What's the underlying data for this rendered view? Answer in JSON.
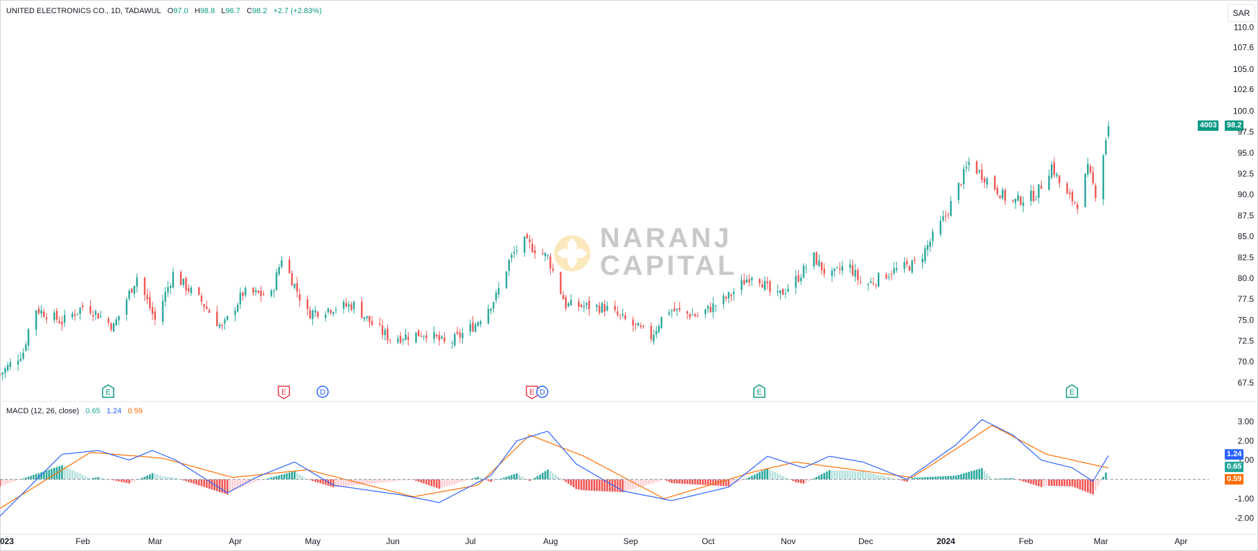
{
  "symbol": {
    "name": "UNITED ELECTRONICS CO., 1D, TADAWUL",
    "o_label": "O",
    "o_value": "97.0",
    "h_label": "H",
    "h_value": "98.8",
    "l_label": "L",
    "l_value": "96.7",
    "c_label": "C",
    "c_value": "98.2",
    "change": "+2.7 (+2.83%)"
  },
  "currency_button": "SAR",
  "price_tag": {
    "volume_text": "4003",
    "price_text": "98.2"
  },
  "macd_legend": {
    "name": "MACD (12, 26, close)",
    "hist": "0.65",
    "macd": "1.24",
    "signal": "0.59"
  },
  "macd_tags": {
    "macd": "1.24",
    "hist": "0.65",
    "signal": "0.59"
  },
  "watermark": {
    "line1": "NARANJ",
    "line2": "CAPITAL"
  },
  "colors": {
    "up": "#26a69a",
    "down": "#ef5350",
    "macd_line": "#2962ff",
    "signal_line": "#ff6d00",
    "hist_up_strong": "#26a69a",
    "hist_up_weak": "#b2dfdb",
    "hist_down_strong": "#ef5350",
    "hist_down_weak": "#ffcdd2"
  },
  "price_axis_labels": [
    "110.0",
    "107.6",
    "105.0",
    "102.6",
    "100.0",
    "97.5",
    "95.0",
    "92.5",
    "90.0",
    "87.5",
    "85.0",
    "82.5",
    "80.0",
    "77.5",
    "75.0",
    "72.5",
    "70.0",
    "67.5"
  ],
  "macd_axis_labels": [
    "3.00",
    "2.00",
    "1.00",
    "-1.00",
    "-2.00"
  ],
  "time_axis_labels": [
    "2023",
    "Feb",
    "Mar",
    "Apr",
    "May",
    "Jun",
    "Jul",
    "Aug",
    "Sep",
    "Oct",
    "Nov",
    "Dec",
    "2024",
    "Feb",
    "Mar",
    "Apr"
  ],
  "events": [
    {
      "type": "E",
      "kind": "earnings-up"
    },
    {
      "type": "E",
      "kind": "earnings-down"
    },
    {
      "type": "D",
      "kind": "dividend"
    },
    {
      "type": "E",
      "kind": "earnings-down"
    },
    {
      "type": "D",
      "kind": "dividend"
    },
    {
      "type": "E",
      "kind": "earnings-up"
    },
    {
      "type": "E",
      "kind": "earnings-up"
    }
  ],
  "chart_data": {
    "type": "candlestick",
    "title": "UNITED ELECTRONICS CO., 1D, TADAWUL",
    "ylim": [
      66.5,
      110.8
    ],
    "price_keypoints": [
      {
        "date": "2023-01-01",
        "close": 68.5
      },
      {
        "date": "2023-01-10",
        "close": 71.2
      },
      {
        "date": "2023-01-14",
        "close": 76.5
      },
      {
        "date": "2023-01-25",
        "close": 74.8
      },
      {
        "date": "2023-02-03",
        "close": 76.8
      },
      {
        "date": "2023-02-14",
        "close": 74.2
      },
      {
        "date": "2023-02-23",
        "close": 80.2
      },
      {
        "date": "2023-03-02",
        "close": 75.0
      },
      {
        "date": "2023-03-09",
        "close": 80.5
      },
      {
        "date": "2023-03-20",
        "close": 77.2
      },
      {
        "date": "2023-03-28",
        "close": 74.0
      },
      {
        "date": "2023-04-05",
        "close": 78.2
      },
      {
        "date": "2023-04-16",
        "close": 78.0
      },
      {
        "date": "2023-04-20",
        "close": 82.5
      },
      {
        "date": "2023-04-30",
        "close": 75.8
      },
      {
        "date": "2023-05-10",
        "close": 76.5
      },
      {
        "date": "2023-05-18",
        "close": 76.8
      },
      {
        "date": "2023-05-25",
        "close": 74.5
      },
      {
        "date": "2023-06-01",
        "close": 72.8
      },
      {
        "date": "2023-06-15",
        "close": 73.5
      },
      {
        "date": "2023-06-23",
        "close": 72.0
      },
      {
        "date": "2023-07-04",
        "close": 74.5
      },
      {
        "date": "2023-07-12",
        "close": 77.8
      },
      {
        "date": "2023-07-17",
        "close": 82.0
      },
      {
        "date": "2023-07-22",
        "close": 84.5
      },
      {
        "date": "2023-08-01",
        "close": 82.5
      },
      {
        "date": "2023-08-08",
        "close": 76.8
      },
      {
        "date": "2023-08-23",
        "close": 76.5
      },
      {
        "date": "2023-09-10",
        "close": 73.0
      },
      {
        "date": "2023-09-16",
        "close": 76.3
      },
      {
        "date": "2023-09-28",
        "close": 75.5
      },
      {
        "date": "2023-10-10",
        "close": 77.8
      },
      {
        "date": "2023-10-20",
        "close": 80.8
      },
      {
        "date": "2023-10-28",
        "close": 77.5
      },
      {
        "date": "2023-11-05",
        "close": 79.8
      },
      {
        "date": "2023-11-12",
        "close": 82.5
      },
      {
        "date": "2023-11-18",
        "close": 80.0
      },
      {
        "date": "2023-11-25",
        "close": 81.8
      },
      {
        "date": "2023-12-01",
        "close": 79.0
      },
      {
        "date": "2023-12-12",
        "close": 80.8
      },
      {
        "date": "2023-12-22",
        "close": 81.8
      },
      {
        "date": "2024-01-02",
        "close": 87.5
      },
      {
        "date": "2024-01-11",
        "close": 93.8
      },
      {
        "date": "2024-01-18",
        "close": 91.8
      },
      {
        "date": "2024-01-27",
        "close": 89.0
      },
      {
        "date": "2024-02-06",
        "close": 90.0
      },
      {
        "date": "2024-02-12",
        "close": 93.5
      },
      {
        "date": "2024-02-17",
        "close": 90.0
      },
      {
        "date": "2024-02-22",
        "close": 89.0
      },
      {
        "date": "2024-02-26",
        "close": 93.0
      },
      {
        "date": "2024-02-29",
        "close": 90.2
      },
      {
        "date": "2024-03-05",
        "close": 98.2
      }
    ],
    "macd": {
      "ylim": [
        -2.6,
        3.5
      ],
      "macd_keypoints": [
        {
          "date": "2023-01-01",
          "value": -1.9
        },
        {
          "date": "2023-01-25",
          "value": 1.3
        },
        {
          "date": "2023-02-08",
          "value": 1.5
        },
        {
          "date": "2023-02-20",
          "value": 1.0
        },
        {
          "date": "2023-03-01",
          "value": 1.5
        },
        {
          "date": "2023-03-10",
          "value": 1.0
        },
        {
          "date": "2023-03-30",
          "value": -0.7
        },
        {
          "date": "2023-04-10",
          "value": 0.1
        },
        {
          "date": "2023-04-25",
          "value": 0.9
        },
        {
          "date": "2023-05-10",
          "value": -0.3
        },
        {
          "date": "2023-06-05",
          "value": -0.8
        },
        {
          "date": "2023-06-20",
          "value": -1.2
        },
        {
          "date": "2023-07-10",
          "value": 0.2
        },
        {
          "date": "2023-07-20",
          "value": 2.0
        },
        {
          "date": "2023-08-01",
          "value": 2.5
        },
        {
          "date": "2023-08-12",
          "value": 0.8
        },
        {
          "date": "2023-08-30",
          "value": -0.6
        },
        {
          "date": "2023-09-18",
          "value": -1.1
        },
        {
          "date": "2023-10-10",
          "value": -0.4
        },
        {
          "date": "2023-10-25",
          "value": 1.2
        },
        {
          "date": "2023-11-08",
          "value": 0.6
        },
        {
          "date": "2023-11-18",
          "value": 1.2
        },
        {
          "date": "2023-12-01",
          "value": 0.9
        },
        {
          "date": "2023-12-18",
          "value": 0.0
        },
        {
          "date": "2024-01-06",
          "value": 1.8
        },
        {
          "date": "2024-01-16",
          "value": 3.1
        },
        {
          "date": "2024-01-28",
          "value": 2.3
        },
        {
          "date": "2024-02-08",
          "value": 1.0
        },
        {
          "date": "2024-02-20",
          "value": 0.6
        },
        {
          "date": "2024-02-28",
          "value": -0.1
        },
        {
          "date": "2024-03-05",
          "value": 1.24
        }
      ],
      "signal_keypoints": [
        {
          "date": "2023-01-01",
          "value": -1.5
        },
        {
          "date": "2023-02-05",
          "value": 1.4
        },
        {
          "date": "2023-03-05",
          "value": 1.1
        },
        {
          "date": "2023-04-01",
          "value": 0.1
        },
        {
          "date": "2023-04-30",
          "value": 0.5
        },
        {
          "date": "2023-06-10",
          "value": -0.9
        },
        {
          "date": "2023-07-05",
          "value": -0.3
        },
        {
          "date": "2023-07-25",
          "value": 2.3
        },
        {
          "date": "2023-08-15",
          "value": 1.2
        },
        {
          "date": "2023-09-15",
          "value": -1.0
        },
        {
          "date": "2023-10-20",
          "value": 0.4
        },
        {
          "date": "2023-11-05",
          "value": 0.9
        },
        {
          "date": "2023-12-20",
          "value": 0.1
        },
        {
          "date": "2024-01-20",
          "value": 2.8
        },
        {
          "date": "2024-02-10",
          "value": 1.3
        },
        {
          "date": "2024-03-05",
          "value": 0.59
        }
      ],
      "histogram_last": 0.65
    }
  }
}
